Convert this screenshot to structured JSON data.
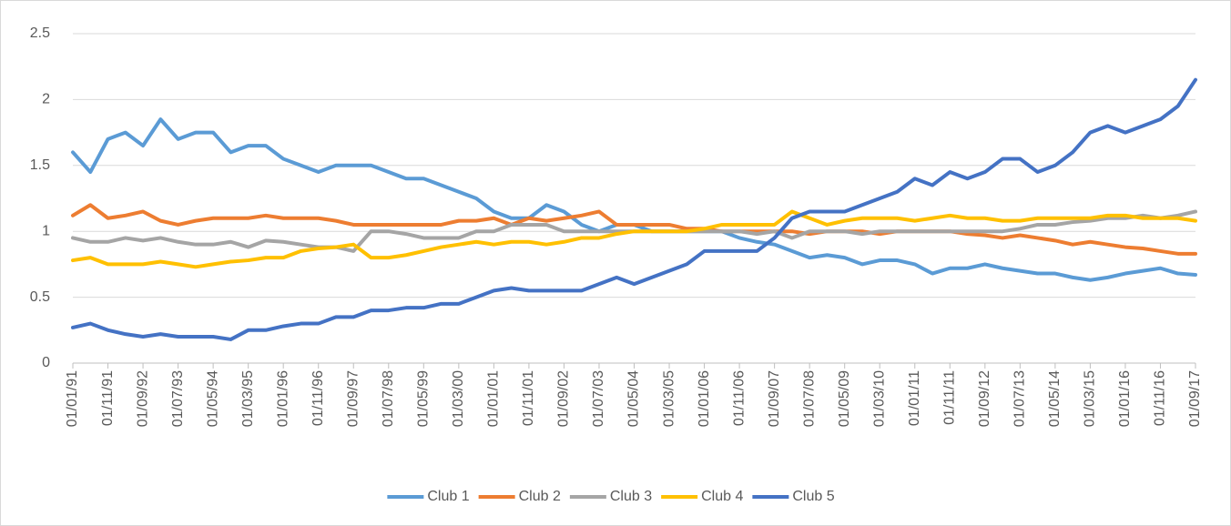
{
  "chart_data": {
    "type": "line",
    "categories": [
      "01/01/91",
      null,
      "01/11/91",
      null,
      "01/09/92",
      null,
      "01/07/93",
      null,
      "01/05/94",
      null,
      "01/03/95",
      null,
      "01/01/96",
      null,
      "01/11/96",
      null,
      "01/09/97",
      null,
      "01/07/98",
      null,
      "01/05/99",
      null,
      "01/03/00",
      null,
      "01/01/01",
      null,
      "01/11/01",
      null,
      "01/09/02",
      null,
      "01/07/03",
      null,
      "01/05/04",
      null,
      "01/03/05",
      null,
      "01/01/06",
      null,
      "01/11/06",
      null,
      "01/09/07",
      null,
      "01/07/08",
      null,
      "01/05/09",
      null,
      "01/03/10",
      null,
      "01/01/11",
      null,
      "01/11/11",
      null,
      "01/09/12",
      null,
      "01/07/13",
      null,
      "01/05/14",
      null,
      "01/03/15",
      null,
      "01/01/16",
      null,
      "01/11/16",
      null,
      "01/09/17"
    ],
    "series": [
      {
        "name": "Club 1",
        "color": "#5b9bd5",
        "values": [
          1.6,
          1.45,
          1.7,
          1.75,
          1.65,
          1.85,
          1.7,
          1.75,
          1.75,
          1.6,
          1.65,
          1.65,
          1.55,
          1.5,
          1.45,
          1.5,
          1.5,
          1.5,
          1.45,
          1.4,
          1.4,
          1.35,
          1.3,
          1.25,
          1.15,
          1.1,
          1.1,
          1.2,
          1.15,
          1.05,
          1.0,
          1.05,
          1.05,
          1.0,
          1.0,
          1.0,
          1.0,
          1.0,
          0.95,
          0.92,
          0.9,
          0.85,
          0.8,
          0.82,
          0.8,
          0.75,
          0.78,
          0.78,
          0.75,
          0.68,
          0.72,
          0.72,
          0.75,
          0.72,
          0.7,
          0.68,
          0.68,
          0.65,
          0.63,
          0.65,
          0.68,
          0.7,
          0.72,
          0.68,
          0.67
        ]
      },
      {
        "name": "Club 2",
        "color": "#ed7d31",
        "values": [
          1.12,
          1.2,
          1.1,
          1.12,
          1.15,
          1.08,
          1.05,
          1.08,
          1.1,
          1.1,
          1.1,
          1.12,
          1.1,
          1.1,
          1.1,
          1.08,
          1.05,
          1.05,
          1.05,
          1.05,
          1.05,
          1.05,
          1.08,
          1.08,
          1.1,
          1.05,
          1.1,
          1.08,
          1.1,
          1.12,
          1.15,
          1.05,
          1.05,
          1.05,
          1.05,
          1.02,
          1.02,
          1.0,
          1.0,
          1.0,
          1.0,
          1.0,
          0.98,
          1.0,
          1.0,
          1.0,
          0.98,
          1.0,
          1.0,
          1.0,
          1.0,
          0.98,
          0.97,
          0.95,
          0.97,
          0.95,
          0.93,
          0.9,
          0.92,
          0.9,
          0.88,
          0.87,
          0.85,
          0.83,
          0.83
        ]
      },
      {
        "name": "Club 3",
        "color": "#a5a5a5",
        "values": [
          0.95,
          0.92,
          0.92,
          0.95,
          0.93,
          0.95,
          0.92,
          0.9,
          0.9,
          0.92,
          0.88,
          0.93,
          0.92,
          0.9,
          0.88,
          0.88,
          0.85,
          1.0,
          1.0,
          0.98,
          0.95,
          0.95,
          0.95,
          1.0,
          1.0,
          1.05,
          1.05,
          1.05,
          1.0,
          1.0,
          1.0,
          1.0,
          1.0,
          1.0,
          1.0,
          1.0,
          1.0,
          1.0,
          1.0,
          0.98,
          1.0,
          0.95,
          1.0,
          1.0,
          1.0,
          0.98,
          1.0,
          1.0,
          1.0,
          1.0,
          1.0,
          1.0,
          1.0,
          1.0,
          1.02,
          1.05,
          1.05,
          1.07,
          1.08,
          1.1,
          1.1,
          1.12,
          1.1,
          1.12,
          1.15
        ]
      },
      {
        "name": "Club 4",
        "color": "#ffc000",
        "values": [
          0.78,
          0.8,
          0.75,
          0.75,
          0.75,
          0.77,
          0.75,
          0.73,
          0.75,
          0.77,
          0.78,
          0.8,
          0.8,
          0.85,
          0.87,
          0.88,
          0.9,
          0.8,
          0.8,
          0.82,
          0.85,
          0.88,
          0.9,
          0.92,
          0.9,
          0.92,
          0.92,
          0.9,
          0.92,
          0.95,
          0.95,
          0.98,
          1.0,
          1.0,
          1.0,
          1.0,
          1.02,
          1.05,
          1.05,
          1.05,
          1.05,
          1.15,
          1.1,
          1.05,
          1.08,
          1.1,
          1.1,
          1.1,
          1.08,
          1.1,
          1.12,
          1.1,
          1.1,
          1.08,
          1.08,
          1.1,
          1.1,
          1.1,
          1.1,
          1.12,
          1.12,
          1.1,
          1.1,
          1.1,
          1.08
        ]
      },
      {
        "name": "Club 5",
        "color": "#4472c4",
        "values": [
          0.27,
          0.3,
          0.25,
          0.22,
          0.2,
          0.22,
          0.2,
          0.2,
          0.2,
          0.18,
          0.25,
          0.25,
          0.28,
          0.3,
          0.3,
          0.35,
          0.35,
          0.4,
          0.4,
          0.42,
          0.42,
          0.45,
          0.45,
          0.5,
          0.55,
          0.57,
          0.55,
          0.55,
          0.55,
          0.55,
          0.6,
          0.65,
          0.6,
          0.65,
          0.7,
          0.75,
          0.85,
          0.85,
          0.85,
          0.85,
          0.95,
          1.1,
          1.15,
          1.15,
          1.15,
          1.2,
          1.25,
          1.3,
          1.4,
          1.35,
          1.45,
          1.4,
          1.45,
          1.55,
          1.55,
          1.45,
          1.5,
          1.6,
          1.75,
          1.8,
          1.75,
          1.8,
          1.85,
          1.95,
          2.15
        ]
      }
    ],
    "ylim": [
      0,
      2.5
    ],
    "yticks": [
      0,
      0.5,
      1,
      1.5,
      2,
      2.5
    ],
    "grid": true,
    "legend": "bottom"
  }
}
